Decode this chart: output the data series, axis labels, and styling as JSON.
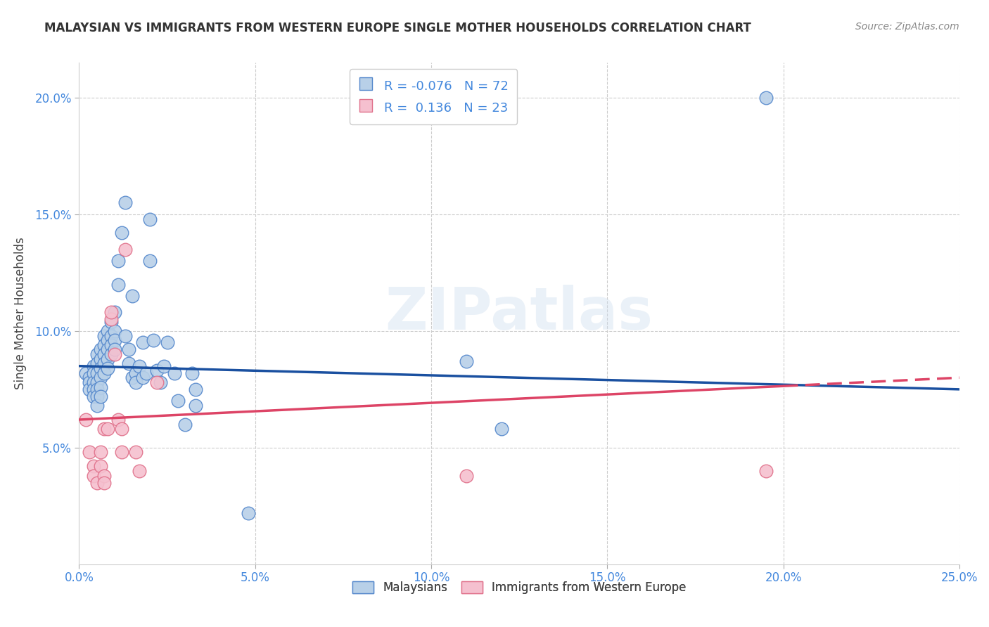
{
  "title": "MALAYSIAN VS IMMIGRANTS FROM WESTERN EUROPE SINGLE MOTHER HOUSEHOLDS CORRELATION CHART",
  "source": "Source: ZipAtlas.com",
  "ylabel": "Single Mother Households",
  "xlim": [
    0.0,
    0.25
  ],
  "ylim": [
    0.0,
    0.215
  ],
  "xtick_vals": [
    0.0,
    0.05,
    0.1,
    0.15,
    0.2,
    0.25
  ],
  "xtick_labels": [
    "0.0%",
    "5.0%",
    "10.0%",
    "15.0%",
    "20.0%",
    "25.0%"
  ],
  "ytick_vals": [
    0.05,
    0.1,
    0.15,
    0.2
  ],
  "ytick_labels": [
    "5.0%",
    "10.0%",
    "15.0%",
    "20.0%"
  ],
  "legend_labels": [
    "Malaysians",
    "Immigrants from Western Europe"
  ],
  "blue_R": "-0.076",
  "blue_N": "72",
  "pink_R": "0.136",
  "pink_N": "23",
  "blue_color": "#b8d0e8",
  "blue_edge": "#5588cc",
  "pink_color": "#f5c0cf",
  "pink_edge": "#e0708a",
  "blue_line_color": "#1a50a0",
  "pink_line_color": "#dd4466",
  "blue_scatter": [
    [
      0.002,
      0.082
    ],
    [
      0.003,
      0.08
    ],
    [
      0.003,
      0.078
    ],
    [
      0.003,
      0.075
    ],
    [
      0.004,
      0.085
    ],
    [
      0.004,
      0.082
    ],
    [
      0.004,
      0.078
    ],
    [
      0.004,
      0.075
    ],
    [
      0.004,
      0.072
    ],
    [
      0.005,
      0.09
    ],
    [
      0.005,
      0.086
    ],
    [
      0.005,
      0.082
    ],
    [
      0.005,
      0.078
    ],
    [
      0.005,
      0.075
    ],
    [
      0.005,
      0.072
    ],
    [
      0.005,
      0.068
    ],
    [
      0.006,
      0.092
    ],
    [
      0.006,
      0.088
    ],
    [
      0.006,
      0.084
    ],
    [
      0.006,
      0.08
    ],
    [
      0.006,
      0.076
    ],
    [
      0.006,
      0.072
    ],
    [
      0.007,
      0.098
    ],
    [
      0.007,
      0.094
    ],
    [
      0.007,
      0.09
    ],
    [
      0.007,
      0.086
    ],
    [
      0.007,
      0.082
    ],
    [
      0.008,
      0.1
    ],
    [
      0.008,
      0.096
    ],
    [
      0.008,
      0.092
    ],
    [
      0.008,
      0.088
    ],
    [
      0.008,
      0.084
    ],
    [
      0.009,
      0.104
    ],
    [
      0.009,
      0.098
    ],
    [
      0.009,
      0.094
    ],
    [
      0.009,
      0.09
    ],
    [
      0.01,
      0.108
    ],
    [
      0.01,
      0.1
    ],
    [
      0.01,
      0.096
    ],
    [
      0.01,
      0.092
    ],
    [
      0.011,
      0.13
    ],
    [
      0.011,
      0.12
    ],
    [
      0.012,
      0.142
    ],
    [
      0.013,
      0.155
    ],
    [
      0.013,
      0.098
    ],
    [
      0.014,
      0.092
    ],
    [
      0.014,
      0.086
    ],
    [
      0.015,
      0.115
    ],
    [
      0.015,
      0.08
    ],
    [
      0.016,
      0.082
    ],
    [
      0.016,
      0.078
    ],
    [
      0.017,
      0.085
    ],
    [
      0.018,
      0.095
    ],
    [
      0.018,
      0.08
    ],
    [
      0.019,
      0.082
    ],
    [
      0.02,
      0.148
    ],
    [
      0.02,
      0.13
    ],
    [
      0.021,
      0.096
    ],
    [
      0.022,
      0.083
    ],
    [
      0.023,
      0.078
    ],
    [
      0.024,
      0.085
    ],
    [
      0.025,
      0.095
    ],
    [
      0.027,
      0.082
    ],
    [
      0.028,
      0.07
    ],
    [
      0.03,
      0.06
    ],
    [
      0.032,
      0.082
    ],
    [
      0.033,
      0.075
    ],
    [
      0.033,
      0.068
    ],
    [
      0.048,
      0.022
    ],
    [
      0.11,
      0.087
    ],
    [
      0.12,
      0.058
    ],
    [
      0.195,
      0.2
    ]
  ],
  "pink_scatter": [
    [
      0.002,
      0.062
    ],
    [
      0.003,
      0.048
    ],
    [
      0.004,
      0.042
    ],
    [
      0.004,
      0.038
    ],
    [
      0.005,
      0.035
    ],
    [
      0.006,
      0.048
    ],
    [
      0.006,
      0.042
    ],
    [
      0.007,
      0.058
    ],
    [
      0.007,
      0.038
    ],
    [
      0.007,
      0.035
    ],
    [
      0.008,
      0.058
    ],
    [
      0.009,
      0.105
    ],
    [
      0.009,
      0.108
    ],
    [
      0.01,
      0.09
    ],
    [
      0.011,
      0.062
    ],
    [
      0.012,
      0.048
    ],
    [
      0.012,
      0.058
    ],
    [
      0.013,
      0.135
    ],
    [
      0.016,
      0.048
    ],
    [
      0.017,
      0.04
    ],
    [
      0.022,
      0.078
    ],
    [
      0.11,
      0.038
    ],
    [
      0.195,
      0.04
    ]
  ],
  "blue_line": {
    "x0": 0.0,
    "y0": 0.085,
    "x1": 0.25,
    "y1": 0.075
  },
  "pink_line": {
    "x0": 0.0,
    "y0": 0.062,
    "x1": 0.25,
    "y1": 0.08
  }
}
